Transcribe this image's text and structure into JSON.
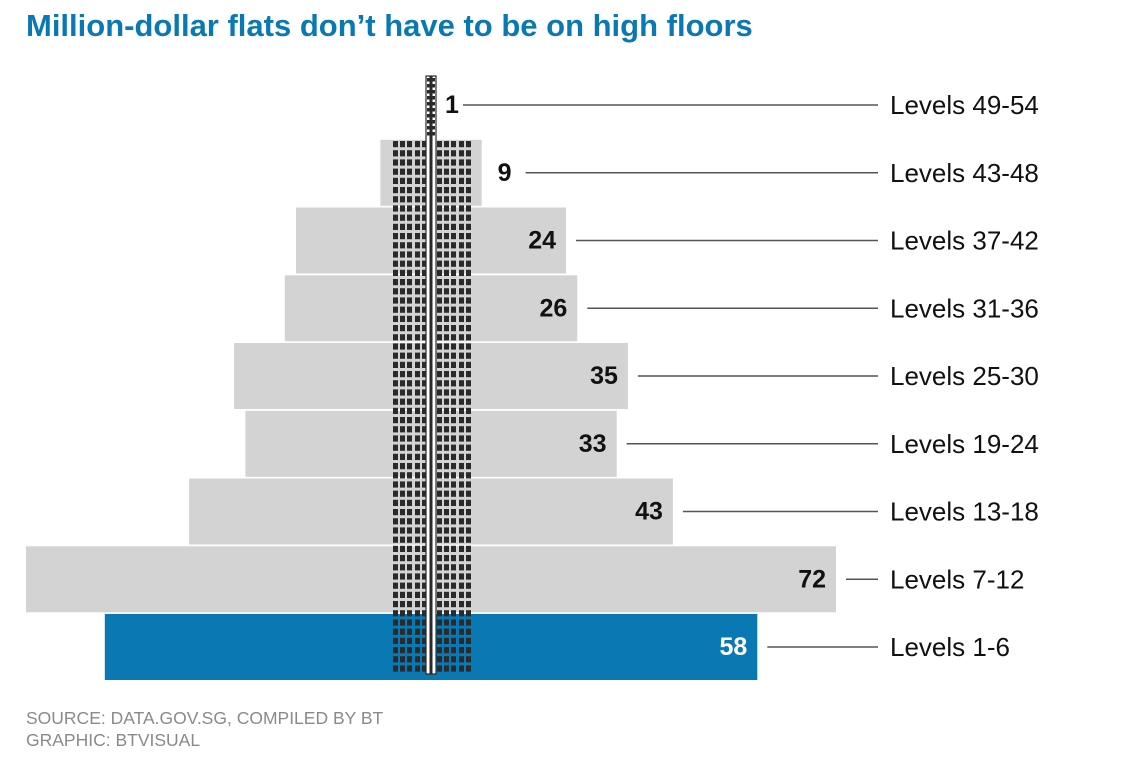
{
  "chart_data": {
    "type": "bar",
    "orientation": "horizontal-centered",
    "title": "Million-dollar flats don’t have to be on high floors",
    "categories": [
      "Levels 49-54",
      "Levels 43-48",
      "Levels 37-42",
      "Levels 31-36",
      "Levels 25-30",
      "Levels 19-24",
      "Levels 13-18",
      "Levels 7-12",
      "Levels 1-6"
    ],
    "values": [
      1,
      9,
      24,
      26,
      35,
      33,
      43,
      72,
      58
    ],
    "highlight": "Levels 1-6",
    "xlabel": "",
    "ylabel": "",
    "xlim": [
      0,
      72
    ]
  },
  "colors": {
    "title": "#0a79b3",
    "highlight_bar": "#0a79b3",
    "bar": "#d3d3d3",
    "leader_line": "#555555",
    "credits": "#8a8a8a"
  },
  "credits": {
    "source": "SOURCE: DATA.GOV.SG, COMPILED BY BT",
    "graphic": "GRAPHIC: BTVISUAL"
  }
}
